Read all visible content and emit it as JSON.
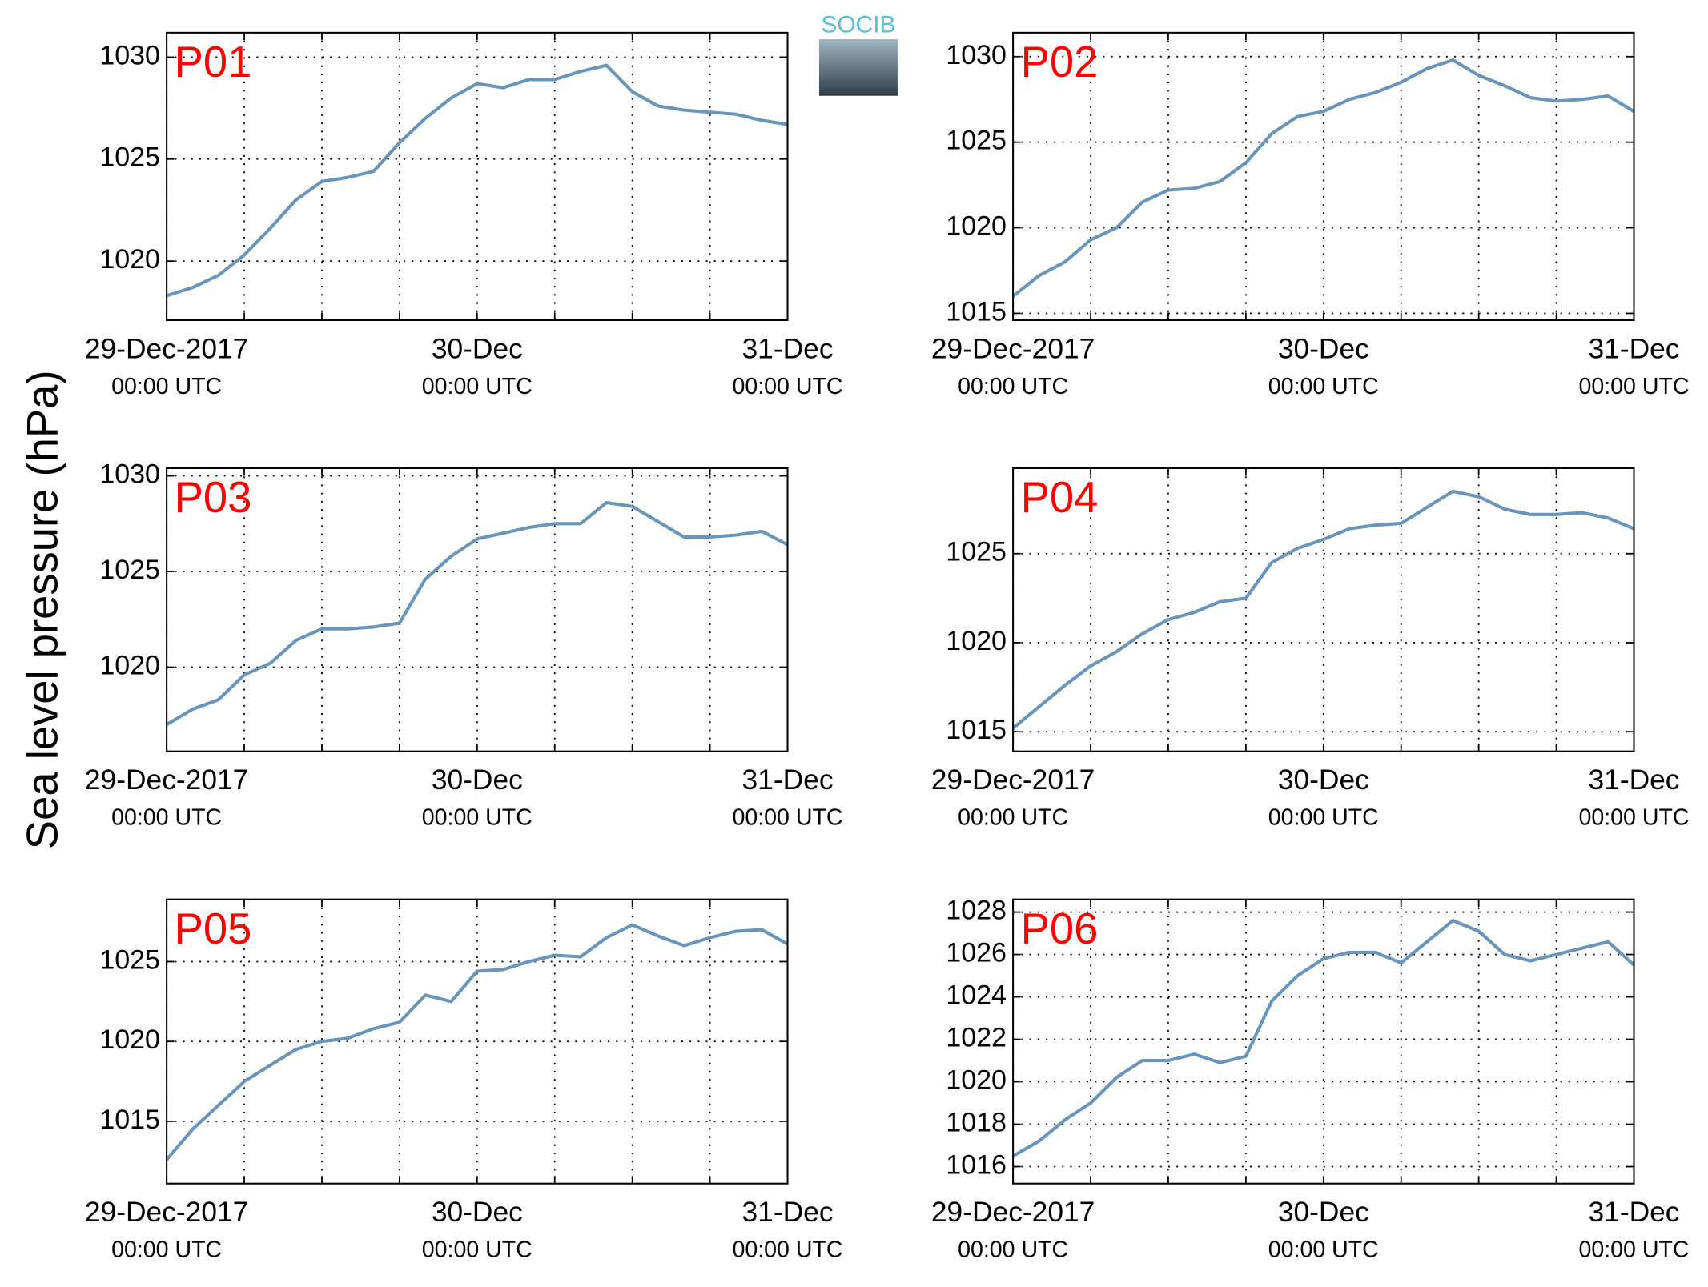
{
  "ylabel": "Sea level pressure (hPa)",
  "logo": "SOCIB",
  "chart_data": [
    {
      "type": "line",
      "title": "P01",
      "color": "#6a95bb",
      "grid": true,
      "x": [
        0,
        2,
        4,
        6,
        8,
        10,
        12,
        14,
        16,
        18,
        20,
        22,
        24,
        26,
        28,
        30,
        32,
        34,
        36,
        38,
        40,
        42,
        44,
        46,
        48
      ],
      "values": [
        1018.3,
        1018.7,
        1019.3,
        1020.3,
        1021.6,
        1023.0,
        1023.9,
        1024.1,
        1024.4,
        1025.8,
        1027.0,
        1028.0,
        1028.7,
        1028.5,
        1028.9,
        1028.9,
        1029.3,
        1029.6,
        1028.3,
        1027.6,
        1027.4,
        1027.3,
        1027.2,
        1026.9,
        1026.7
      ],
      "xlim": [
        0,
        48
      ],
      "ylim": [
        1017.1,
        1031.2
      ],
      "yticks": [
        1020,
        1025,
        1030
      ],
      "xticks": [
        {
          "value": 0,
          "label": [
            "29-Dec-2017",
            "00:00 UTC"
          ]
        },
        {
          "value": 6,
          "label": null
        },
        {
          "value": 12,
          "label": null
        },
        {
          "value": 18,
          "label": null
        },
        {
          "value": 24,
          "label": [
            "30-Dec",
            "00:00 UTC"
          ]
        },
        {
          "value": 30,
          "label": null
        },
        {
          "value": 36,
          "label": null
        },
        {
          "value": 42,
          "label": null
        },
        {
          "value": 48,
          "label": [
            "31-Dec",
            "00:00 UTC"
          ]
        }
      ]
    },
    {
      "type": "line",
      "title": "P02",
      "color": "#6a95bb",
      "grid": true,
      "x": [
        0,
        2,
        4,
        6,
        8,
        10,
        12,
        14,
        16,
        18,
        20,
        22,
        24,
        26,
        28,
        30,
        32,
        34,
        36,
        38,
        40,
        42,
        44,
        46,
        48
      ],
      "values": [
        1016.0,
        1017.2,
        1018.0,
        1019.3,
        1020.0,
        1021.5,
        1022.2,
        1022.3,
        1022.7,
        1023.8,
        1025.5,
        1026.5,
        1026.8,
        1027.5,
        1027.9,
        1028.5,
        1029.3,
        1029.8,
        1028.9,
        1028.3,
        1027.6,
        1027.4,
        1027.5,
        1027.7,
        1026.8
      ],
      "xlim": [
        0,
        48
      ],
      "ylim": [
        1014.6,
        1031.4
      ],
      "yticks": [
        1015,
        1020,
        1025,
        1030
      ],
      "xticks": [
        {
          "value": 0,
          "label": [
            "29-Dec-2017",
            "00:00 UTC"
          ]
        },
        {
          "value": 6,
          "label": null
        },
        {
          "value": 12,
          "label": null
        },
        {
          "value": 18,
          "label": null
        },
        {
          "value": 24,
          "label": [
            "30-Dec",
            "00:00 UTC"
          ]
        },
        {
          "value": 30,
          "label": null
        },
        {
          "value": 36,
          "label": null
        },
        {
          "value": 42,
          "label": null
        },
        {
          "value": 48,
          "label": [
            "31-Dec",
            "00:00 UTC"
          ]
        }
      ]
    },
    {
      "type": "line",
      "title": "P03",
      "color": "#6a95bb",
      "grid": true,
      "x": [
        0,
        2,
        4,
        6,
        8,
        10,
        12,
        14,
        16,
        18,
        20,
        22,
        24,
        26,
        28,
        30,
        32,
        34,
        36,
        38,
        40,
        42,
        44,
        46,
        48
      ],
      "values": [
        1017.0,
        1017.8,
        1018.3,
        1019.6,
        1020.2,
        1021.4,
        1022.0,
        1022.0,
        1022.1,
        1022.3,
        1024.6,
        1025.8,
        1026.7,
        1027.0,
        1027.3,
        1027.5,
        1027.5,
        1028.6,
        1028.4,
        1027.6,
        1026.8,
        1026.8,
        1026.9,
        1027.1,
        1026.4
      ],
      "xlim": [
        0,
        48
      ],
      "ylim": [
        1015.6,
        1030.4
      ],
      "yticks": [
        1020,
        1025,
        1030
      ],
      "xticks": [
        {
          "value": 0,
          "label": [
            "29-Dec-2017",
            "00:00 UTC"
          ]
        },
        {
          "value": 6,
          "label": null
        },
        {
          "value": 12,
          "label": null
        },
        {
          "value": 18,
          "label": null
        },
        {
          "value": 24,
          "label": [
            "30-Dec",
            "00:00 UTC"
          ]
        },
        {
          "value": 30,
          "label": null
        },
        {
          "value": 36,
          "label": null
        },
        {
          "value": 42,
          "label": null
        },
        {
          "value": 48,
          "label": [
            "31-Dec",
            "00:00 UTC"
          ]
        }
      ]
    },
    {
      "type": "line",
      "title": "P04",
      "color": "#6a95bb",
      "grid": true,
      "x": [
        0,
        2,
        4,
        6,
        8,
        10,
        12,
        14,
        16,
        18,
        20,
        22,
        24,
        26,
        28,
        30,
        32,
        34,
        36,
        38,
        40,
        42,
        44,
        46,
        48
      ],
      "values": [
        1015.2,
        1016.4,
        1017.6,
        1018.7,
        1019.5,
        1020.5,
        1021.3,
        1021.7,
        1022.3,
        1022.5,
        1024.5,
        1025.3,
        1025.8,
        1026.4,
        1026.6,
        1026.7,
        1027.6,
        1028.5,
        1028.2,
        1027.5,
        1027.2,
        1027.2,
        1027.3,
        1027.0,
        1026.4
      ],
      "xlim": [
        0,
        48
      ],
      "ylim": [
        1013.9,
        1029.8
      ],
      "yticks": [
        1015,
        1020,
        1025
      ],
      "xticks": [
        {
          "value": 0,
          "label": [
            "29-Dec-2017",
            "00:00 UTC"
          ]
        },
        {
          "value": 6,
          "label": null
        },
        {
          "value": 12,
          "label": null
        },
        {
          "value": 18,
          "label": null
        },
        {
          "value": 24,
          "label": [
            "30-Dec",
            "00:00 UTC"
          ]
        },
        {
          "value": 30,
          "label": null
        },
        {
          "value": 36,
          "label": null
        },
        {
          "value": 42,
          "label": null
        },
        {
          "value": 48,
          "label": [
            "31-Dec",
            "00:00 UTC"
          ]
        }
      ]
    },
    {
      "type": "line",
      "title": "P05",
      "color": "#6a95bb",
      "grid": true,
      "x": [
        0,
        2,
        4,
        6,
        8,
        10,
        12,
        14,
        16,
        18,
        20,
        22,
        24,
        26,
        28,
        30,
        32,
        34,
        36,
        38,
        40,
        42,
        44,
        46,
        48
      ],
      "values": [
        1012.6,
        1014.5,
        1016.0,
        1017.5,
        1018.5,
        1019.5,
        1020.0,
        1020.2,
        1020.8,
        1021.2,
        1022.9,
        1022.5,
        1024.4,
        1024.5,
        1025.0,
        1025.4,
        1025.3,
        1026.5,
        1027.3,
        1026.6,
        1026.0,
        1026.5,
        1026.9,
        1027.0,
        1026.1
      ],
      "xlim": [
        0,
        48
      ],
      "ylim": [
        1011.1,
        1028.9
      ],
      "yticks": [
        1015,
        1020,
        1025
      ],
      "xticks": [
        {
          "value": 0,
          "label": [
            "29-Dec-2017",
            "00:00 UTC"
          ]
        },
        {
          "value": 6,
          "label": null
        },
        {
          "value": 12,
          "label": null
        },
        {
          "value": 18,
          "label": null
        },
        {
          "value": 24,
          "label": [
            "30-Dec",
            "00:00 UTC"
          ]
        },
        {
          "value": 30,
          "label": null
        },
        {
          "value": 36,
          "label": null
        },
        {
          "value": 42,
          "label": null
        },
        {
          "value": 48,
          "label": [
            "31-Dec",
            "00:00 UTC"
          ]
        }
      ]
    },
    {
      "type": "line",
      "title": "P06",
      "color": "#6a95bb",
      "grid": true,
      "x": [
        0,
        2,
        4,
        6,
        8,
        10,
        12,
        14,
        16,
        18,
        20,
        22,
        24,
        26,
        28,
        30,
        32,
        34,
        36,
        38,
        40,
        42,
        44,
        46,
        48
      ],
      "values": [
        1016.5,
        1017.2,
        1018.2,
        1019.0,
        1020.2,
        1021.0,
        1021.0,
        1021.3,
        1020.9,
        1021.2,
        1023.8,
        1025.0,
        1025.8,
        1026.1,
        1026.1,
        1025.6,
        1026.6,
        1027.6,
        1027.1,
        1026.0,
        1025.7,
        1026.0,
        1026.3,
        1026.6,
        1025.5
      ],
      "xlim": [
        0,
        48
      ],
      "ylim": [
        1015.2,
        1028.6
      ],
      "yticks": [
        1016,
        1018,
        1020,
        1022,
        1024,
        1026,
        1028
      ],
      "xticks": [
        {
          "value": 0,
          "label": [
            "29-Dec-2017",
            "00:00 UTC"
          ]
        },
        {
          "value": 6,
          "label": null
        },
        {
          "value": 12,
          "label": null
        },
        {
          "value": 18,
          "label": null
        },
        {
          "value": 24,
          "label": [
            "30-Dec",
            "00:00 UTC"
          ]
        },
        {
          "value": 30,
          "label": null
        },
        {
          "value": 36,
          "label": null
        },
        {
          "value": 42,
          "label": null
        },
        {
          "value": 48,
          "label": [
            "31-Dec",
            "00:00 UTC"
          ]
        }
      ]
    }
  ]
}
